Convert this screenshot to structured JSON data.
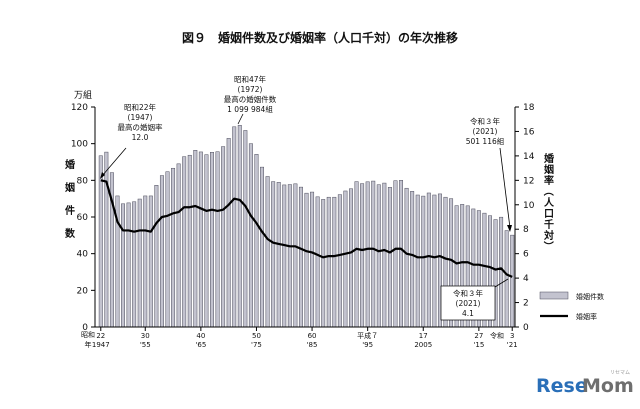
{
  "chart_data": {
    "type": "bar",
    "title": "図９　婚姻件数及び婚姻率（人口千対）の年次推移",
    "y_left": {
      "unit": "万組",
      "label": "婚姻件数",
      "ticks": [
        "0",
        "20",
        "40",
        "60",
        "80",
        "100",
        "120"
      ],
      "range": [
        0,
        120
      ]
    },
    "y_right": {
      "label": "婚姻率（人口千対）",
      "ticks": [
        "0",
        "2",
        "4",
        "6",
        "8",
        "10",
        "12",
        "14",
        "16",
        "18"
      ],
      "range": [
        0,
        18
      ]
    },
    "x_ticks": [
      {
        "label": "22",
        "sub": "1947",
        "year": 1947
      },
      {
        "label": "30",
        "sub": "'55",
        "year": 1955
      },
      {
        "label": "40",
        "sub": "'65",
        "year": 1965
      },
      {
        "label": "50",
        "sub": "'75",
        "year": 1975
      },
      {
        "label": "60",
        "sub": "'85",
        "year": 1985
      },
      {
        "label": "平成７",
        "sub": "'95",
        "year": 1995
      },
      {
        "label": "17",
        "sub": "2005",
        "year": 2005
      },
      {
        "label": "27",
        "sub": "'15",
        "year": 2015
      },
      {
        "label": "3",
        "sub": "'21",
        "year": 2021
      }
    ],
    "x_prefix_top": "昭和",
    "x_prefix_bottom": "年",
    "reiwa_label": "令和",
    "years": [
      1947,
      1948,
      1949,
      1950,
      1951,
      1952,
      1953,
      1954,
      1955,
      1956,
      1957,
      1958,
      1959,
      1960,
      1961,
      1962,
      1963,
      1964,
      1965,
      1966,
      1967,
      1968,
      1969,
      1970,
      1971,
      1972,
      1973,
      1974,
      1975,
      1976,
      1977,
      1978,
      1979,
      1980,
      1981,
      1982,
      1983,
      1984,
      1985,
      1986,
      1987,
      1988,
      1989,
      1990,
      1991,
      1992,
      1993,
      1994,
      1995,
      1996,
      1997,
      1998,
      1999,
      2000,
      2001,
      2002,
      2003,
      2004,
      2005,
      2006,
      2007,
      2008,
      2009,
      2010,
      2011,
      2012,
      2013,
      2014,
      2015,
      2016,
      2017,
      2018,
      2019,
      2020,
      2021
    ],
    "series": [
      {
        "name": "婚姻件数",
        "axis": "left",
        "type": "bar",
        "values": [
          93.4,
          95.4,
          84.2,
          71.5,
          67.2,
          67.7,
          68.3,
          69.8,
          71.5,
          71.5,
          77.3,
          82.6,
          84.7,
          86.6,
          89.0,
          92.9,
          93.7,
          96.4,
          95.5,
          94.0,
          95.3,
          95.6,
          98.4,
          102.9,
          109.2,
          110.0,
          107.2,
          100.0,
          94.2,
          87.2,
          82.1,
          79.3,
          78.9,
          77.5,
          77.7,
          78.1,
          76.3,
          73.0,
          73.6,
          71.0,
          69.6,
          70.8,
          70.8,
          72.2,
          74.2,
          75.4,
          79.3,
          78.2,
          79.2,
          79.6,
          77.6,
          78.5,
          76.2,
          79.8,
          80.0,
          75.7,
          74.0,
          72.0,
          71.4,
          73.1,
          72.0,
          72.6,
          70.8,
          70.0,
          66.2,
          66.9,
          66.1,
          64.4,
          63.5,
          62.1,
          60.7,
          58.6,
          59.9,
          52.6,
          50.1
        ]
      },
      {
        "name": "婚姻率",
        "axis": "right",
        "type": "line",
        "values": [
          12.0,
          11.9,
          10.3,
          8.6,
          7.9,
          7.9,
          7.8,
          7.9,
          7.9,
          7.8,
          8.5,
          9.0,
          9.1,
          9.3,
          9.4,
          9.8,
          9.8,
          9.9,
          9.7,
          9.5,
          9.6,
          9.5,
          9.6,
          10.0,
          10.5,
          10.4,
          9.9,
          9.1,
          8.5,
          7.8,
          7.2,
          6.9,
          6.8,
          6.7,
          6.6,
          6.6,
          6.4,
          6.2,
          6.1,
          5.9,
          5.7,
          5.8,
          5.8,
          5.9,
          6.0,
          6.1,
          6.4,
          6.3,
          6.4,
          6.4,
          6.2,
          6.3,
          6.1,
          6.4,
          6.4,
          6.0,
          5.9,
          5.7,
          5.7,
          5.8,
          5.7,
          5.8,
          5.6,
          5.5,
          5.2,
          5.3,
          5.3,
          5.1,
          5.1,
          5.0,
          4.9,
          4.7,
          4.8,
          4.3,
          4.1
        ]
      }
    ],
    "legend": {
      "placement": "bottom-right",
      "bar_label": "婚姻件数",
      "line_label": "婚姻率"
    },
    "annotations": {
      "a1947": {
        "l1": "昭和22年",
        "l2": "(1947)",
        "l3": "最高の婚姻率",
        "l4": "12.0"
      },
      "a1972": {
        "l1": "昭和47年",
        "l2": "(1972)",
        "l3": "最高の婚姻件数",
        "l4": "1 099 984組"
      },
      "a2021c": {
        "l1": "令和３年",
        "l2": "(2021)",
        "l3": "501 116組"
      },
      "a2021r": {
        "l1": "令和３年",
        "l2": "(2021)",
        "l3": "4.1"
      }
    },
    "colors": {
      "bar_fill": "#c3c3cf",
      "bar_stroke": "#4a4a5a",
      "line": "#000000"
    }
  },
  "watermark": {
    "brand_a": "Rese",
    "brand_b": "Mom",
    "sub": "リセマム"
  }
}
